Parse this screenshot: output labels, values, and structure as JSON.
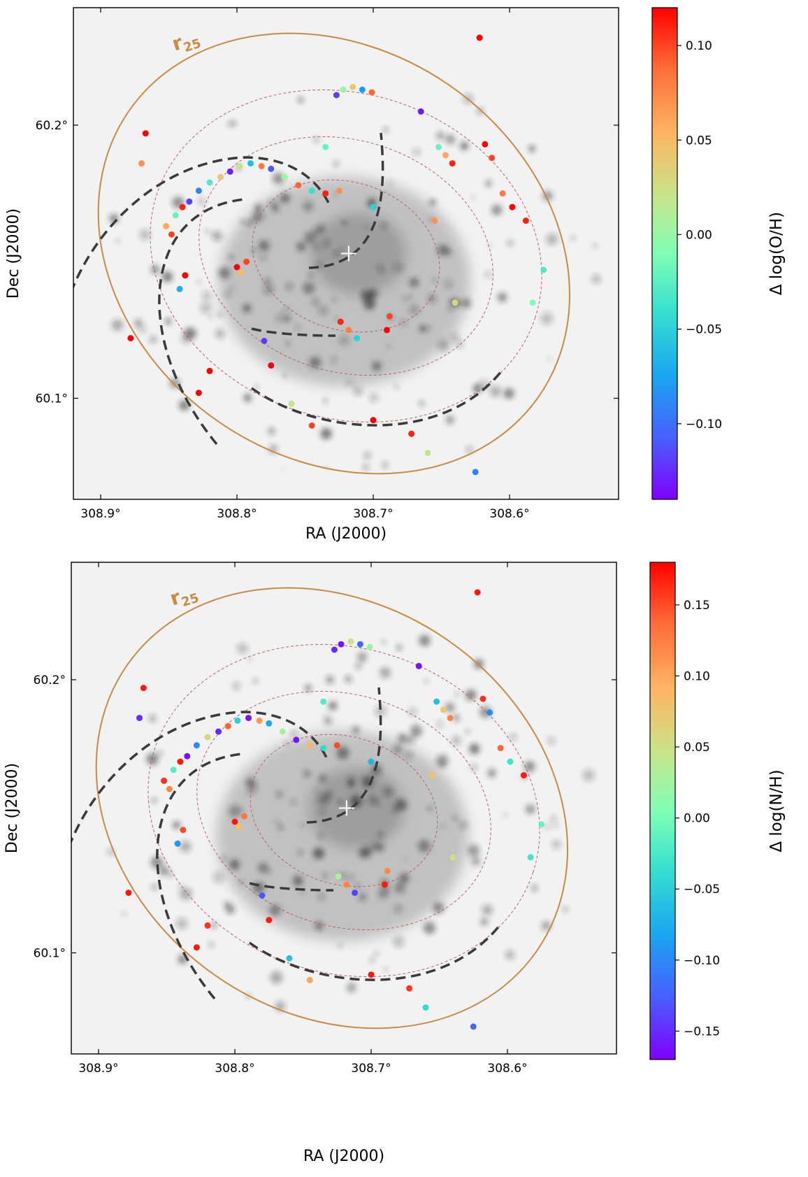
{
  "colors": {
    "r25_ellipse": "#c98a45",
    "dashed_rings": "#b86464",
    "spiral_arms": "#3a3a3a",
    "background_image": "#f2f2f2"
  },
  "colormap": "rainbow",
  "chart_data": [
    {
      "type": "scatter",
      "description_marks": "HII region abundance residuals over galaxy image",
      "xlabel": "RA (J2000)",
      "ylabel": "Dec (J2000)",
      "x_ticks": [
        "308.9°",
        "308.8°",
        "308.7°",
        "308.6°"
      ],
      "x_tick_values": [
        308.9,
        308.8,
        308.7,
        308.6
      ],
      "y_ticks": [
        "60.2°",
        "60.1°"
      ],
      "y_tick_values": [
        60.2,
        60.1
      ],
      "xlim": [
        308.915,
        308.717
      ],
      "ylim": [
        60.064,
        60.243
      ],
      "r25_label_base": "r",
      "r25_label_sub": "25",
      "colorbar": {
        "label": "Δ log(O/H)",
        "range": [
          -0.14,
          0.12
        ],
        "ticks": [
          0.1,
          0.05,
          0.0,
          -0.05,
          -0.1
        ],
        "tick_labels": [
          "0.10",
          "0.05",
          "0.00",
          "−0.05",
          "−0.10"
        ]
      },
      "points": [
        {
          "ra": 308.852,
          "dec": 60.163,
          "v": 0.06
        },
        {
          "ra": 308.848,
          "dec": 60.16,
          "v": 0.1
        },
        {
          "ra": 308.845,
          "dec": 60.167,
          "v": -0.02
        },
        {
          "ra": 308.84,
          "dec": 60.17,
          "v": 0.11
        },
        {
          "ra": 308.835,
          "dec": 60.172,
          "v": -0.12
        },
        {
          "ra": 308.828,
          "dec": 60.176,
          "v": -0.09
        },
        {
          "ra": 308.82,
          "dec": 60.179,
          "v": -0.03
        },
        {
          "ra": 308.812,
          "dec": 60.181,
          "v": 0.04
        },
        {
          "ra": 308.805,
          "dec": 60.183,
          "v": -0.13
        },
        {
          "ra": 308.798,
          "dec": 60.185,
          "v": 0.02
        },
        {
          "ra": 308.79,
          "dec": 60.186,
          "v": -0.06
        },
        {
          "ra": 308.782,
          "dec": 60.185,
          "v": 0.08
        },
        {
          "ra": 308.775,
          "dec": 60.184,
          "v": -0.11
        },
        {
          "ra": 308.765,
          "dec": 60.181,
          "v": 0.0
        },
        {
          "ra": 308.755,
          "dec": 60.178,
          "v": 0.09
        },
        {
          "ra": 308.745,
          "dec": 60.176,
          "v": -0.04
        },
        {
          "ra": 308.735,
          "dec": 60.175,
          "v": 0.11
        },
        {
          "ra": 308.725,
          "dec": 60.176,
          "v": 0.07
        },
        {
          "ra": 308.8,
          "dec": 60.148,
          "v": 0.12
        },
        {
          "ra": 308.797,
          "dec": 60.146,
          "v": 0.05
        },
        {
          "ra": 308.793,
          "dec": 60.15,
          "v": 0.1
        },
        {
          "ra": 308.722,
          "dec": 60.213,
          "v": 0.0
        },
        {
          "ra": 308.715,
          "dec": 60.214,
          "v": 0.04
        },
        {
          "ra": 308.708,
          "dec": 60.213,
          "v": -0.08
        },
        {
          "ra": 308.701,
          "dec": 60.212,
          "v": 0.09
        },
        {
          "ra": 308.727,
          "dec": 60.211,
          "v": -0.12
        },
        {
          "ra": 308.652,
          "dec": 60.192,
          "v": -0.02
        },
        {
          "ra": 308.647,
          "dec": 60.189,
          "v": 0.06
        },
        {
          "ra": 308.642,
          "dec": 60.186,
          "v": 0.11
        },
        {
          "ra": 308.618,
          "dec": 60.193,
          "v": 0.12
        },
        {
          "ra": 308.613,
          "dec": 60.188,
          "v": 0.1
        },
        {
          "ra": 308.605,
          "dec": 60.175,
          "v": 0.08
        },
        {
          "ra": 308.598,
          "dec": 60.17,
          "v": 0.12
        },
        {
          "ra": 308.588,
          "dec": 60.165,
          "v": 0.11
        },
        {
          "ra": 308.718,
          "dec": 60.125,
          "v": 0.08
        },
        {
          "ra": 308.712,
          "dec": 60.122,
          "v": -0.05
        },
        {
          "ra": 308.724,
          "dec": 60.128,
          "v": 0.11
        },
        {
          "ra": 308.78,
          "dec": 60.121,
          "v": -0.12
        },
        {
          "ra": 308.775,
          "dec": 60.112,
          "v": 0.12
        },
        {
          "ra": 308.87,
          "dec": 60.186,
          "v": 0.07
        },
        {
          "ra": 308.867,
          "dec": 60.197,
          "v": 0.12
        },
        {
          "ra": 308.878,
          "dec": 60.122,
          "v": 0.12
        },
        {
          "ra": 308.842,
          "dec": 60.14,
          "v": -0.07
        },
        {
          "ra": 308.838,
          "dec": 60.145,
          "v": 0.12
        },
        {
          "ra": 308.82,
          "dec": 60.11,
          "v": 0.12
        },
        {
          "ra": 308.828,
          "dec": 60.102,
          "v": 0.12
        },
        {
          "ra": 308.76,
          "dec": 60.098,
          "v": 0.02
        },
        {
          "ra": 308.745,
          "dec": 60.09,
          "v": 0.1
        },
        {
          "ra": 308.7,
          "dec": 60.092,
          "v": 0.12
        },
        {
          "ra": 308.672,
          "dec": 60.087,
          "v": 0.11
        },
        {
          "ra": 308.66,
          "dec": 60.08,
          "v": 0.02
        },
        {
          "ra": 308.625,
          "dec": 60.073,
          "v": -0.09
        },
        {
          "ra": 308.622,
          "dec": 60.232,
          "v": 0.12
        },
        {
          "ra": 308.665,
          "dec": 60.205,
          "v": -0.13
        },
        {
          "ra": 308.575,
          "dec": 60.147,
          "v": -0.03
        },
        {
          "ra": 308.583,
          "dec": 60.135,
          "v": -0.01
        },
        {
          "ra": 308.64,
          "dec": 60.135,
          "v": 0.03
        },
        {
          "ra": 308.688,
          "dec": 60.13,
          "v": 0.1
        },
        {
          "ra": 308.69,
          "dec": 60.125,
          "v": 0.12
        },
        {
          "ra": 308.655,
          "dec": 60.165,
          "v": 0.07
        },
        {
          "ra": 308.7,
          "dec": 60.17,
          "v": -0.05
        },
        {
          "ra": 308.735,
          "dec": 60.192,
          "v": -0.02
        }
      ]
    },
    {
      "type": "scatter",
      "xlabel": "RA (J2000)",
      "ylabel": "Dec (J2000)",
      "x_ticks": [
        "308.9°",
        "308.8°",
        "308.7°",
        "308.6°"
      ],
      "x_tick_values": [
        308.9,
        308.8,
        308.7,
        308.6
      ],
      "y_ticks": [
        "60.2°",
        "60.1°"
      ],
      "y_tick_values": [
        60.2,
        60.1
      ],
      "xlim": [
        308.915,
        308.717
      ],
      "ylim": [
        60.064,
        60.243
      ],
      "r25_label_base": "r",
      "r25_label_sub": "25",
      "colorbar": {
        "label": "Δ log(N/H)",
        "range": [
          -0.17,
          0.18
        ],
        "ticks": [
          0.15,
          0.1,
          0.05,
          0.0,
          -0.05,
          -0.1,
          -0.15
        ],
        "tick_labels": [
          "0.15",
          "0.10",
          "0.05",
          "0.00",
          "−0.05",
          "−0.10",
          "−0.15"
        ]
      },
      "points": [
        {
          "ra": 308.852,
          "dec": 60.163,
          "v": 0.16
        },
        {
          "ra": 308.848,
          "dec": 60.16,
          "v": 0.12
        },
        {
          "ra": 308.845,
          "dec": 60.167,
          "v": -0.02
        },
        {
          "ra": 308.84,
          "dec": 60.17,
          "v": 0.17
        },
        {
          "ra": 308.835,
          "dec": 60.172,
          "v": -0.16
        },
        {
          "ra": 308.828,
          "dec": 60.176,
          "v": -0.1
        },
        {
          "ra": 308.82,
          "dec": 60.179,
          "v": 0.06
        },
        {
          "ra": 308.812,
          "dec": 60.181,
          "v": -0.15
        },
        {
          "ra": 308.805,
          "dec": 60.183,
          "v": 0.14
        },
        {
          "ra": 308.798,
          "dec": 60.185,
          "v": -0.05
        },
        {
          "ra": 308.79,
          "dec": 60.186,
          "v": -0.16
        },
        {
          "ra": 308.782,
          "dec": 60.185,
          "v": 0.11
        },
        {
          "ra": 308.775,
          "dec": 60.184,
          "v": -0.08
        },
        {
          "ra": 308.765,
          "dec": 60.181,
          "v": 0.03
        },
        {
          "ra": 308.755,
          "dec": 60.178,
          "v": -0.16
        },
        {
          "ra": 308.745,
          "dec": 60.176,
          "v": 0.09
        },
        {
          "ra": 308.735,
          "dec": 60.175,
          "v": -0.04
        },
        {
          "ra": 308.725,
          "dec": 60.176,
          "v": 0.15
        },
        {
          "ra": 308.8,
          "dec": 60.148,
          "v": 0.17
        },
        {
          "ra": 308.797,
          "dec": 60.146,
          "v": 0.08
        },
        {
          "ra": 308.793,
          "dec": 60.15,
          "v": 0.13
        },
        {
          "ra": 308.722,
          "dec": 60.213,
          "v": -0.16
        },
        {
          "ra": 308.715,
          "dec": 60.214,
          "v": 0.05
        },
        {
          "ra": 308.708,
          "dec": 60.213,
          "v": -0.12
        },
        {
          "ra": 308.701,
          "dec": 60.212,
          "v": 0.02
        },
        {
          "ra": 308.727,
          "dec": 60.211,
          "v": -0.15
        },
        {
          "ra": 308.652,
          "dec": 60.192,
          "v": -0.06
        },
        {
          "ra": 308.647,
          "dec": 60.189,
          "v": 0.07
        },
        {
          "ra": 308.642,
          "dec": 60.186,
          "v": 0.12
        },
        {
          "ra": 308.618,
          "dec": 60.193,
          "v": 0.16
        },
        {
          "ra": 308.613,
          "dec": 60.188,
          "v": -0.1
        },
        {
          "ra": 308.605,
          "dec": 60.175,
          "v": 0.14
        },
        {
          "ra": 308.598,
          "dec": 60.17,
          "v": -0.03
        },
        {
          "ra": 308.588,
          "dec": 60.165,
          "v": 0.17
        },
        {
          "ra": 308.718,
          "dec": 60.125,
          "v": 0.12
        },
        {
          "ra": 308.712,
          "dec": 60.122,
          "v": -0.14
        },
        {
          "ra": 308.724,
          "dec": 60.128,
          "v": 0.03
        },
        {
          "ra": 308.78,
          "dec": 60.121,
          "v": -0.13
        },
        {
          "ra": 308.775,
          "dec": 60.112,
          "v": 0.17
        },
        {
          "ra": 308.87,
          "dec": 60.186,
          "v": -0.15
        },
        {
          "ra": 308.867,
          "dec": 60.197,
          "v": 0.17
        },
        {
          "ra": 308.878,
          "dec": 60.122,
          "v": 0.17
        },
        {
          "ra": 308.842,
          "dec": 60.14,
          "v": -0.09
        },
        {
          "ra": 308.838,
          "dec": 60.145,
          "v": 0.15
        },
        {
          "ra": 308.82,
          "dec": 60.11,
          "v": 0.16
        },
        {
          "ra": 308.828,
          "dec": 60.102,
          "v": 0.17
        },
        {
          "ra": 308.76,
          "dec": 60.098,
          "v": -0.06
        },
        {
          "ra": 308.745,
          "dec": 60.09,
          "v": 0.1
        },
        {
          "ra": 308.7,
          "dec": 60.092,
          "v": 0.17
        },
        {
          "ra": 308.672,
          "dec": 60.087,
          "v": 0.16
        },
        {
          "ra": 308.66,
          "dec": 60.08,
          "v": -0.04
        },
        {
          "ra": 308.625,
          "dec": 60.073,
          "v": -0.12
        },
        {
          "ra": 308.622,
          "dec": 60.232,
          "v": 0.17
        },
        {
          "ra": 308.665,
          "dec": 60.205,
          "v": -0.16
        },
        {
          "ra": 308.575,
          "dec": 60.147,
          "v": -0.01
        },
        {
          "ra": 308.583,
          "dec": 60.135,
          "v": -0.03
        },
        {
          "ra": 308.64,
          "dec": 60.135,
          "v": 0.05
        },
        {
          "ra": 308.688,
          "dec": 60.13,
          "v": 0.12
        },
        {
          "ra": 308.69,
          "dec": 60.125,
          "v": 0.17
        },
        {
          "ra": 308.655,
          "dec": 60.165,
          "v": 0.08
        },
        {
          "ra": 308.7,
          "dec": 60.17,
          "v": -0.07
        },
        {
          "ra": 308.735,
          "dec": 60.192,
          "v": -0.02
        }
      ]
    }
  ]
}
